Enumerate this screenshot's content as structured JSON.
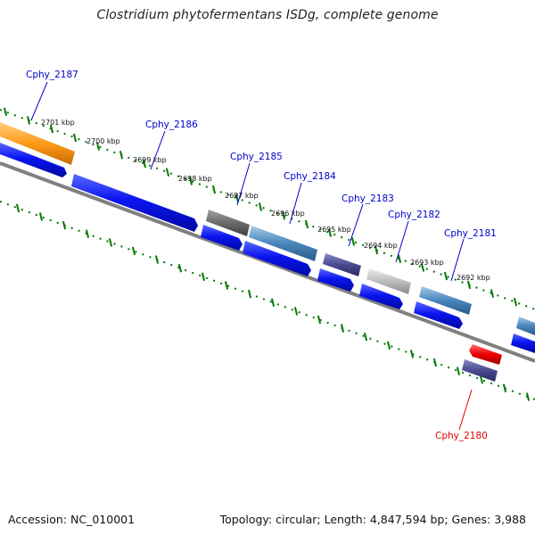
{
  "title": "Clostridium phytofermentans ISDg, complete genome",
  "footer": {
    "accession": "Accession: NC_010001",
    "summary": "Topology: circular; Length: 4,847,594 bp; Genes: 3,988"
  },
  "kbp_ticks": [
    "2701 kbp",
    "2700 kbp",
    "2699 kbp",
    "2698 kbp",
    "2697 kbp",
    "2696 kbp",
    "2695 kbp",
    "2694 kbp",
    "2693 kbp",
    "2692 kbp"
  ],
  "genes": [
    {
      "label": "Cphy_2187",
      "color": "#0000cc"
    },
    {
      "label": "Cphy_2186",
      "color": "#0000cc"
    },
    {
      "label": "Cphy_2185",
      "color": "#0000cc"
    },
    {
      "label": "Cphy_2184",
      "color": "#0000cc"
    },
    {
      "label": "Cphy_2183",
      "color": "#0000cc"
    },
    {
      "label": "Cphy_2182",
      "color": "#0000cc"
    },
    {
      "label": "Cphy_2181",
      "color": "#0000cc"
    },
    {
      "label": "Cphy_2180",
      "color": "#e00000"
    }
  ],
  "colors": {
    "cds_blue": "#0a14f0",
    "highlight_orange": "#ff9a18",
    "steelblue": "#4a86bc",
    "slate": "#4a4a90",
    "grey_dark": "#6a6a6a",
    "grey_light": "#bdbdbd",
    "red": "#ee0000",
    "tick_green": "#007a00",
    "backbone": "#808080"
  }
}
